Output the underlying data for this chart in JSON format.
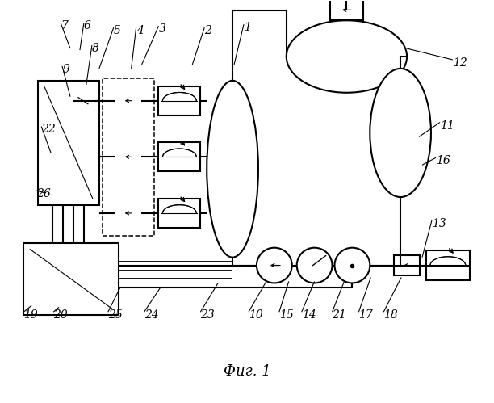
{
  "title": "Фиг. 1",
  "bg_color": "#ffffff",
  "figsize": [
    6.12,
    4.99
  ],
  "dpi": 100
}
